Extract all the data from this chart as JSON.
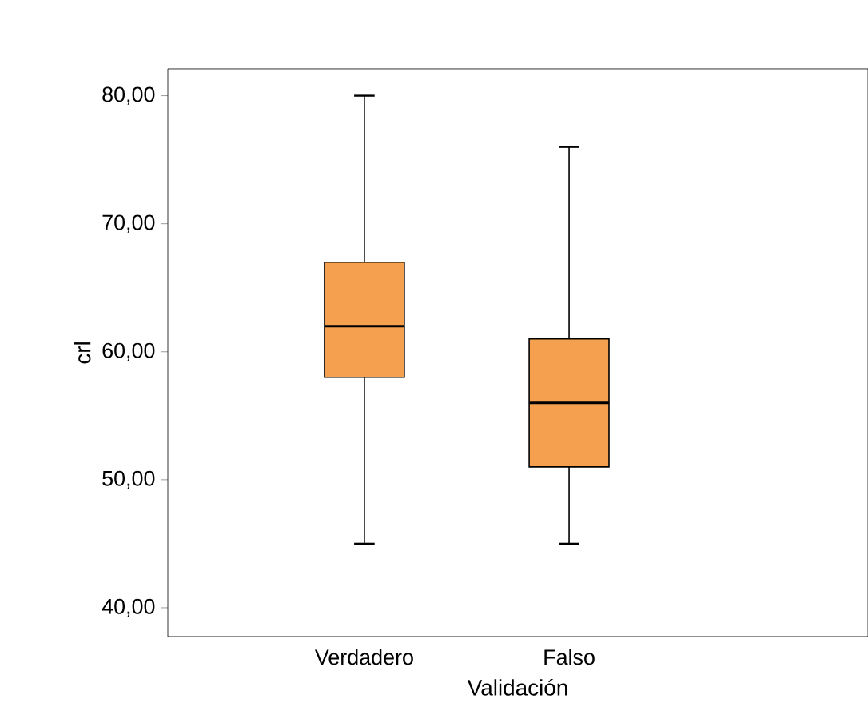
{
  "chart_data": {
    "type": "box",
    "xlabel": "Validación",
    "ylabel": "crl",
    "categories": [
      "Verdadero",
      "Falso"
    ],
    "boxes": [
      {
        "low": 45,
        "q1": 58,
        "median": 62,
        "q3": 67,
        "high": 80
      },
      {
        "low": 45,
        "q1": 51,
        "median": 56,
        "q3": 61,
        "high": 76
      }
    ],
    "color": "#f4a04f",
    "ylim": [
      37.75,
      82.1
    ],
    "yticks": [
      {
        "value": 40,
        "label": "40,00"
      },
      {
        "value": 50,
        "label": "50,00"
      },
      {
        "value": 60,
        "label": "60,00"
      },
      {
        "value": 70,
        "label": "70,00"
      },
      {
        "value": 80,
        "label": "80,00"
      }
    ],
    "grid": false
  }
}
